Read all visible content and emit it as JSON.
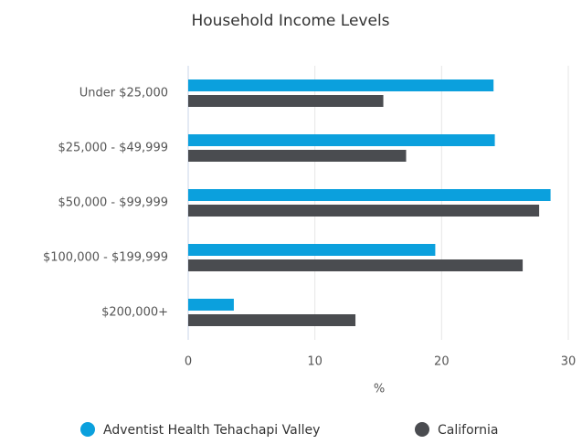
{
  "chart_data": {
    "type": "hbar",
    "title": "Household Income Levels",
    "categories": [
      "Under $25,000",
      "$25,000 - $49,999",
      "$50,000 - $99,999",
      "$100,000 - $199,999",
      "$200,000+"
    ],
    "series": [
      {
        "name": "Adventist Health Tehachapi Valley",
        "color": "#0ba0dd",
        "values": [
          24.1,
          24.2,
          28.6,
          19.5,
          3.6
        ]
      },
      {
        "name": "California",
        "color": "#4a4c50",
        "values": [
          15.4,
          17.2,
          27.7,
          26.4,
          13.2
        ]
      }
    ],
    "xlabel": "%",
    "xlim": [
      0,
      30
    ],
    "xticks": [
      0,
      10,
      20,
      30
    ],
    "grid": true,
    "legend": "bottom"
  }
}
